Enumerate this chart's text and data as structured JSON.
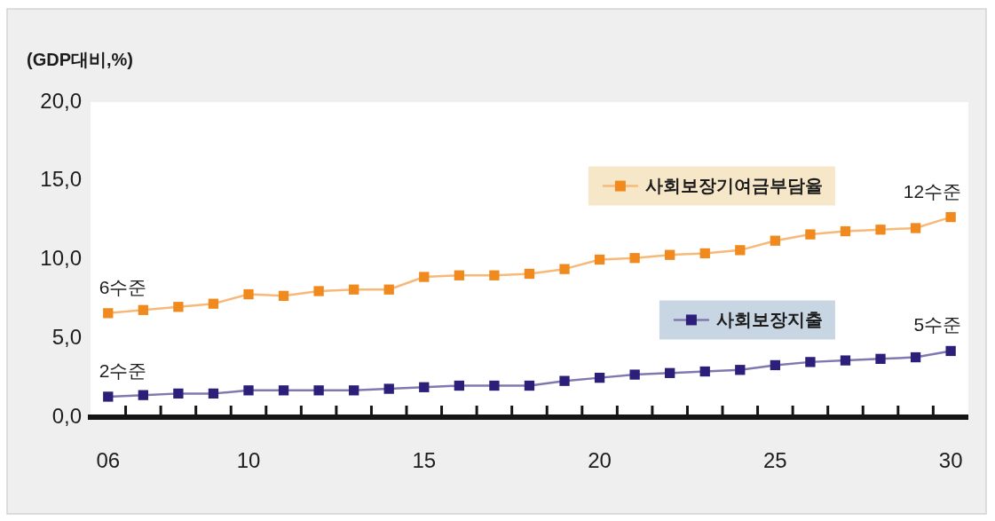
{
  "chart_data": {
    "type": "line",
    "ylabel": "(GDP대비,%)",
    "categories": [
      "06",
      null,
      null,
      null,
      "10",
      null,
      null,
      null,
      null,
      "15",
      null,
      null,
      null,
      null,
      "20",
      null,
      null,
      null,
      null,
      "25",
      null,
      null,
      null,
      null,
      "30"
    ],
    "series": [
      {
        "name": "사회보장기여금부담율",
        "color": "#f08a1e",
        "values": [
          6.6,
          6.8,
          7.0,
          7.2,
          7.8,
          7.7,
          8.0,
          8.1,
          8.1,
          8.9,
          9.0,
          9.0,
          9.1,
          9.4,
          10.0,
          10.1,
          10.3,
          10.4,
          10.6,
          11.2,
          11.6,
          11.8,
          11.9,
          12.0,
          12.7
        ]
      },
      {
        "name": "사회보장지출",
        "color": "#2b1f7a",
        "values": [
          1.3,
          1.4,
          1.5,
          1.5,
          1.7,
          1.7,
          1.7,
          1.7,
          1.8,
          1.9,
          2.0,
          2.0,
          2.0,
          2.3,
          2.5,
          2.7,
          2.8,
          2.9,
          3.0,
          3.3,
          3.5,
          3.6,
          3.7,
          3.8,
          4.2
        ]
      }
    ],
    "ylim": [
      0,
      20
    ],
    "yticks": [
      {
        "value": 0,
        "label": "0,0"
      },
      {
        "value": 5,
        "label": "5,0"
      },
      {
        "value": 10,
        "label": "10,0"
      },
      {
        "value": 15,
        "label": "15,0"
      },
      {
        "value": 20,
        "label": "20,0"
      }
    ],
    "annotations": [
      {
        "text": "6수준",
        "x": "06",
        "y": 6.6
      },
      {
        "text": "2수준",
        "x": "06",
        "y": 1.3
      },
      {
        "text": "12수준",
        "x": "30",
        "y": 12.7
      },
      {
        "text": "5수준",
        "x": "30",
        "y": 4.2
      }
    ],
    "legend": "right",
    "marker": "square",
    "line_style": "solid"
  }
}
